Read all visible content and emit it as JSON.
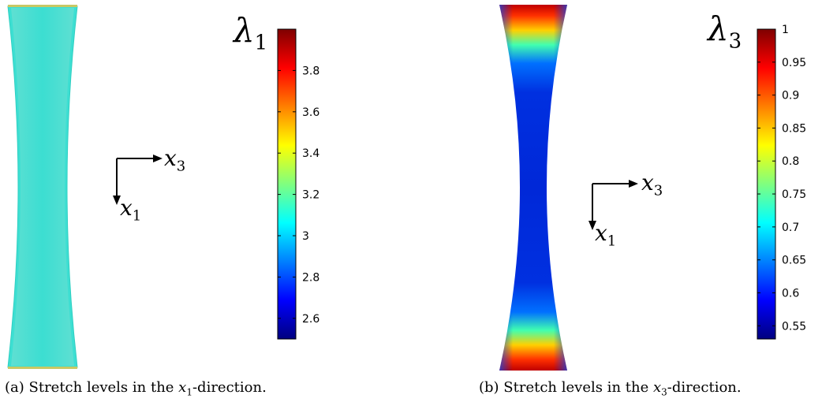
{
  "figures": [
    {
      "id": "a",
      "colorbar_symbol": "λ",
      "colorbar_index": "1",
      "colorbar_ticks": [
        "3.8",
        "3.6",
        "3.4",
        "3.2",
        "3",
        "2.8",
        "2.6"
      ],
      "tick_values": [
        3.8,
        3.6,
        3.4,
        3.2,
        3.0,
        2.8,
        2.6
      ],
      "range": [
        2.5,
        4.0
      ],
      "axis_horizontal_letter": "x",
      "axis_horizontal_index": "3",
      "axis_vertical_letter": "x",
      "axis_vertical_index": "1",
      "caption_prefix": "(a) Stretch levels in the ",
      "caption_var": "x",
      "caption_sub": "1",
      "caption_suffix": "-direction."
    },
    {
      "id": "b",
      "colorbar_symbol": "λ",
      "colorbar_index": "3",
      "colorbar_ticks": [
        "1",
        "0.95",
        "0.9",
        "0.85",
        "0.8",
        "0.75",
        "0.7",
        "0.65",
        "0.6",
        "0.55"
      ],
      "tick_values": [
        1.0,
        0.95,
        0.9,
        0.85,
        0.8,
        0.75,
        0.7,
        0.65,
        0.6,
        0.55
      ],
      "range": [
        0.53,
        1.0
      ],
      "axis_horizontal_letter": "x",
      "axis_horizontal_index": "3",
      "axis_vertical_letter": "x",
      "axis_vertical_index": "1",
      "caption_prefix": "(b) Stretch levels in the ",
      "caption_var": "x",
      "caption_sub": "3",
      "caption_suffix": "-direction."
    }
  ]
}
